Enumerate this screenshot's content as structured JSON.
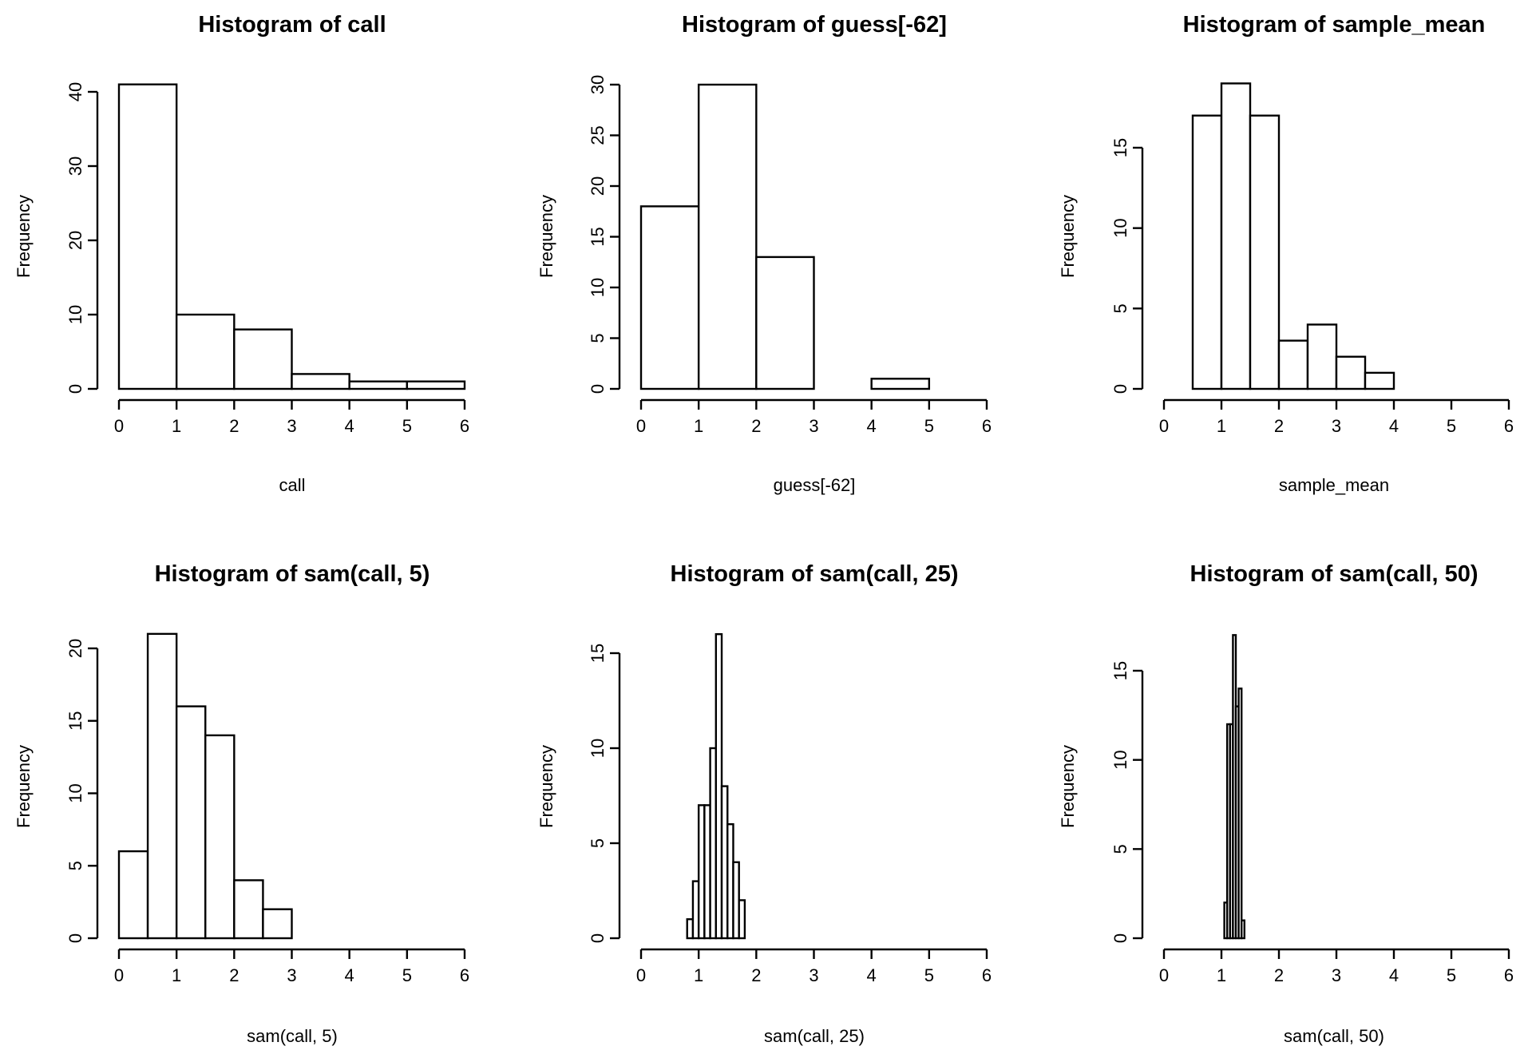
{
  "chart_data": [
    {
      "type": "bar",
      "title": "Histogram of call",
      "xlabel": "call",
      "ylabel": "Frequency",
      "xlim": [
        0,
        6
      ],
      "ylim": [
        0,
        41
      ],
      "xticks": [
        "0",
        "1",
        "2",
        "3",
        "4",
        "5",
        "6"
      ],
      "yticks": [
        "0",
        "10",
        "20",
        "30",
        "40"
      ],
      "bins": [
        [
          0,
          1
        ],
        [
          1,
          2
        ],
        [
          2,
          3
        ],
        [
          3,
          4
        ],
        [
          4,
          5
        ],
        [
          5,
          6
        ]
      ],
      "values": [
        41,
        10,
        8,
        2,
        1,
        1
      ]
    },
    {
      "type": "bar",
      "title": "Histogram of guess[-62]",
      "xlabel": "guess[-62]",
      "ylabel": "Frequency",
      "xlim": [
        0,
        6
      ],
      "ylim": [
        0,
        30
      ],
      "xticks": [
        "0",
        "1",
        "2",
        "3",
        "4",
        "5",
        "6"
      ],
      "yticks": [
        "0",
        "5",
        "10",
        "15",
        "20",
        "25",
        "30"
      ],
      "bins": [
        [
          0,
          1
        ],
        [
          1,
          2
        ],
        [
          2,
          3
        ],
        [
          3,
          4
        ],
        [
          4,
          5
        ]
      ],
      "values": [
        18,
        30,
        13,
        0,
        1
      ]
    },
    {
      "type": "bar",
      "title": "Histogram of sample_mean",
      "xlabel": "sample_mean",
      "ylabel": "Frequency",
      "xlim": [
        0,
        6
      ],
      "ylim": [
        0,
        19
      ],
      "xticks": [
        "0",
        "1",
        "2",
        "3",
        "4",
        "5",
        "6"
      ],
      "yticks": [
        "0",
        "5",
        "10",
        "15"
      ],
      "bins": [
        [
          0.5,
          1
        ],
        [
          1,
          1.5
        ],
        [
          1.5,
          2
        ],
        [
          2,
          2.5
        ],
        [
          2.5,
          3
        ],
        [
          3,
          3.5
        ],
        [
          3.5,
          4
        ]
      ],
      "values": [
        17,
        19,
        17,
        3,
        4,
        2,
        1
      ]
    },
    {
      "type": "bar",
      "title": "Histogram of sam(call, 5)",
      "xlabel": "sam(call, 5)",
      "ylabel": "Frequency",
      "xlim": [
        0,
        6
      ],
      "ylim": [
        0,
        21
      ],
      "xticks": [
        "0",
        "1",
        "2",
        "3",
        "4",
        "5",
        "6"
      ],
      "yticks": [
        "0",
        "5",
        "10",
        "15",
        "20"
      ],
      "bins": [
        [
          0,
          0.5
        ],
        [
          0.5,
          1
        ],
        [
          1,
          1.5
        ],
        [
          1.5,
          2
        ],
        [
          2,
          2.5
        ],
        [
          2.5,
          3
        ]
      ],
      "values": [
        6,
        21,
        16,
        14,
        4,
        2
      ]
    },
    {
      "type": "bar",
      "title": "Histogram of sam(call, 25)",
      "xlabel": "sam(call, 25)",
      "ylabel": "Frequency",
      "xlim": [
        0,
        6
      ],
      "ylim": [
        0,
        16
      ],
      "xticks": [
        "0",
        "1",
        "2",
        "3",
        "4",
        "5",
        "6"
      ],
      "yticks": [
        "0",
        "5",
        "10",
        "15"
      ],
      "bins": [
        [
          0.8,
          0.9
        ],
        [
          0.9,
          1.0
        ],
        [
          1.0,
          1.1
        ],
        [
          1.1,
          1.2
        ],
        [
          1.2,
          1.3
        ],
        [
          1.3,
          1.4
        ],
        [
          1.4,
          1.5
        ],
        [
          1.5,
          1.6
        ],
        [
          1.6,
          1.7
        ],
        [
          1.7,
          1.8
        ]
      ],
      "values": [
        1,
        3,
        7,
        7,
        10,
        16,
        8,
        6,
        4,
        2
      ]
    },
    {
      "type": "bar",
      "title": "Histogram of sam(call, 50)",
      "xlabel": "sam(call, 50)",
      "ylabel": "Frequency",
      "xlim": [
        0,
        6
      ],
      "ylim": [
        0,
        17
      ],
      "xticks": [
        "0",
        "1",
        "2",
        "3",
        "4",
        "5",
        "6"
      ],
      "yticks": [
        "0",
        "5",
        "10",
        "15"
      ],
      "bins": [
        [
          1.05,
          1.1
        ],
        [
          1.1,
          1.15
        ],
        [
          1.15,
          1.2
        ],
        [
          1.2,
          1.25
        ],
        [
          1.25,
          1.3
        ],
        [
          1.3,
          1.35
        ],
        [
          1.35,
          1.4
        ]
      ],
      "values": [
        2,
        12,
        12,
        17,
        13,
        14,
        1
      ]
    }
  ]
}
